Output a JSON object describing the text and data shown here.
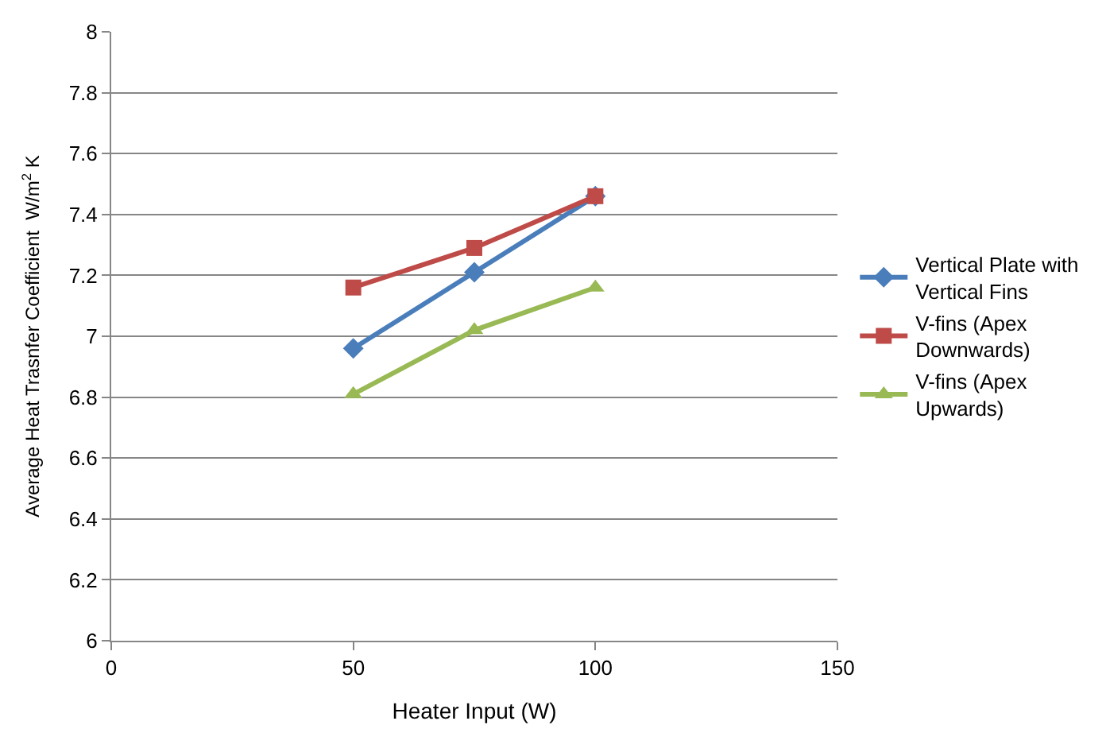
{
  "chart_data": {
    "type": "line",
    "xlabel": "Heater Input (W)",
    "ylabel": "Average Heat Trasnfer Coefficient  W/m$^{2}$ K",
    "x": [
      50,
      75,
      100
    ],
    "series": [
      {
        "name": "Vertical Plate with Vertical Fins",
        "color": "#4a7ebb",
        "marker": "diamond",
        "values": [
          6.96,
          7.21,
          7.46
        ]
      },
      {
        "name": "V-fins (Apex Downwards)",
        "color": "#be4b48",
        "marker": "square",
        "values": [
          7.16,
          7.29,
          7.46
        ]
      },
      {
        "name": "V-fins (Apex Upwards)",
        "color": "#98b954",
        "marker": "triangle",
        "values": [
          6.81,
          7.02,
          7.16
        ]
      }
    ],
    "xlim": [
      0,
      150
    ],
    "xticks": [
      0,
      50,
      100,
      150
    ],
    "ylim": [
      6,
      8
    ],
    "yticks": [
      6,
      6.2,
      6.4,
      6.6,
      6.8,
      7,
      7.2,
      7.4,
      7.6,
      7.8,
      8
    ],
    "grid": "y",
    "legend": "right",
    "line_style": "solid"
  }
}
